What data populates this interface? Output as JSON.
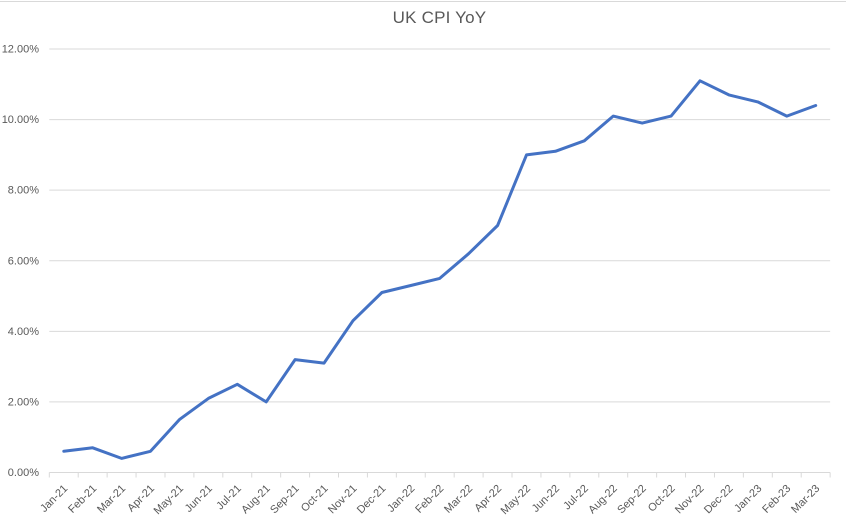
{
  "chart_data": {
    "type": "line",
    "title": "UK CPI YoY",
    "xlabel": "",
    "ylabel": "",
    "categories": [
      "Jan-21",
      "Feb-21",
      "Mar-21",
      "Apr-21",
      "May-21",
      "Jun-21",
      "Jul-21",
      "Aug-21",
      "Sep-21",
      "Oct-21",
      "Nov-21",
      "Dec-21",
      "Jan-22",
      "Feb-22",
      "Mar-22",
      "Apr-22",
      "May-22",
      "Jun-22",
      "Jul-22",
      "Aug-22",
      "Sep-22",
      "Oct-22",
      "Nov-22",
      "Dec-22",
      "Jan-23",
      "Feb-23",
      "Mar-23"
    ],
    "series": [
      {
        "name": "UK CPI YoY",
        "values": [
          0.6,
          0.7,
          0.4,
          0.6,
          1.5,
          2.1,
          2.5,
          2.0,
          3.2,
          3.1,
          4.3,
          5.1,
          5.3,
          5.5,
          6.2,
          7.0,
          9.0,
          9.1,
          9.4,
          10.1,
          9.9,
          10.1,
          11.1,
          10.7,
          10.5,
          10.1,
          10.4
        ],
        "color": "#4472C4"
      }
    ],
    "ylim": [
      0,
      12
    ],
    "y_tick_step": 2,
    "y_tick_labels": [
      "0.00%",
      "2.00%",
      "4.00%",
      "6.00%",
      "8.00%",
      "10.00%",
      "12.00%"
    ],
    "grid": true,
    "legend_position": "none",
    "colors": {
      "line": "#4472C4",
      "gridline": "#D9D9D9",
      "axis": "#D9D9D9",
      "tick_label": "#595959",
      "title": "#595959",
      "background": "#FFFFFF",
      "top_border": "#D9D9D9"
    }
  }
}
